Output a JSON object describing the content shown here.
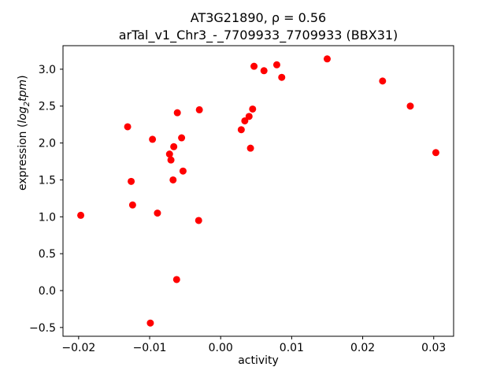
{
  "chart_data": {
    "type": "scatter",
    "title_line1": "AT3G21890, ρ = 0.56",
    "title_line2": "arTal_v1_Chr3_-_7709933_7709933 (BBX31)",
    "xlabel": "activity",
    "ylabel_parts": {
      "prefix": "expression (",
      "italic1": "log",
      "sub": "2",
      "italic2": "tpm",
      "suffix": ")"
    },
    "marker_color": "#ff0000",
    "axis_color": "#000000",
    "xlim": [
      -0.0222,
      0.0328
    ],
    "ylim": [
      -0.619,
      3.319
    ],
    "xticks": [
      {
        "value": -0.02,
        "label": "−0.02"
      },
      {
        "value": -0.01,
        "label": "−0.01"
      },
      {
        "value": 0.0,
        "label": "0.00"
      },
      {
        "value": 0.01,
        "label": "0.01"
      },
      {
        "value": 0.02,
        "label": "0.02"
      },
      {
        "value": 0.03,
        "label": "0.03"
      }
    ],
    "yticks": [
      {
        "value": -0.5,
        "label": "−0.5"
      },
      {
        "value": 0.0,
        "label": "0.0"
      },
      {
        "value": 0.5,
        "label": "0.5"
      },
      {
        "value": 1.0,
        "label": "1.0"
      },
      {
        "value": 1.5,
        "label": "1.5"
      },
      {
        "value": 2.0,
        "label": "2.0"
      },
      {
        "value": 2.5,
        "label": "2.5"
      },
      {
        "value": 3.0,
        "label": "3.0"
      }
    ],
    "points": [
      [
        -0.0197,
        1.02
      ],
      [
        -0.0131,
        2.22
      ],
      [
        -0.0126,
        1.48
      ],
      [
        -0.0124,
        1.16
      ],
      [
        -0.0099,
        -0.44
      ],
      [
        -0.0096,
        2.05
      ],
      [
        -0.0089,
        1.05
      ],
      [
        -0.0072,
        1.85
      ],
      [
        -0.007,
        1.77
      ],
      [
        -0.0067,
        1.5
      ],
      [
        -0.0066,
        1.95
      ],
      [
        -0.0062,
        0.15
      ],
      [
        -0.0061,
        2.41
      ],
      [
        -0.0055,
        2.07
      ],
      [
        -0.0053,
        1.62
      ],
      [
        -0.0031,
        0.95
      ],
      [
        -0.003,
        2.45
      ],
      [
        0.0029,
        2.18
      ],
      [
        0.0034,
        2.3
      ],
      [
        0.004,
        2.36
      ],
      [
        0.0042,
        1.93
      ],
      [
        0.0045,
        2.46
      ],
      [
        0.0047,
        3.04
      ],
      [
        0.0061,
        2.98
      ],
      [
        0.0079,
        3.06
      ],
      [
        0.0086,
        2.89
      ],
      [
        0.015,
        3.14
      ],
      [
        0.0228,
        2.84
      ],
      [
        0.0267,
        2.5
      ],
      [
        0.0303,
        1.87
      ]
    ],
    "grid": false,
    "legend": null
  }
}
